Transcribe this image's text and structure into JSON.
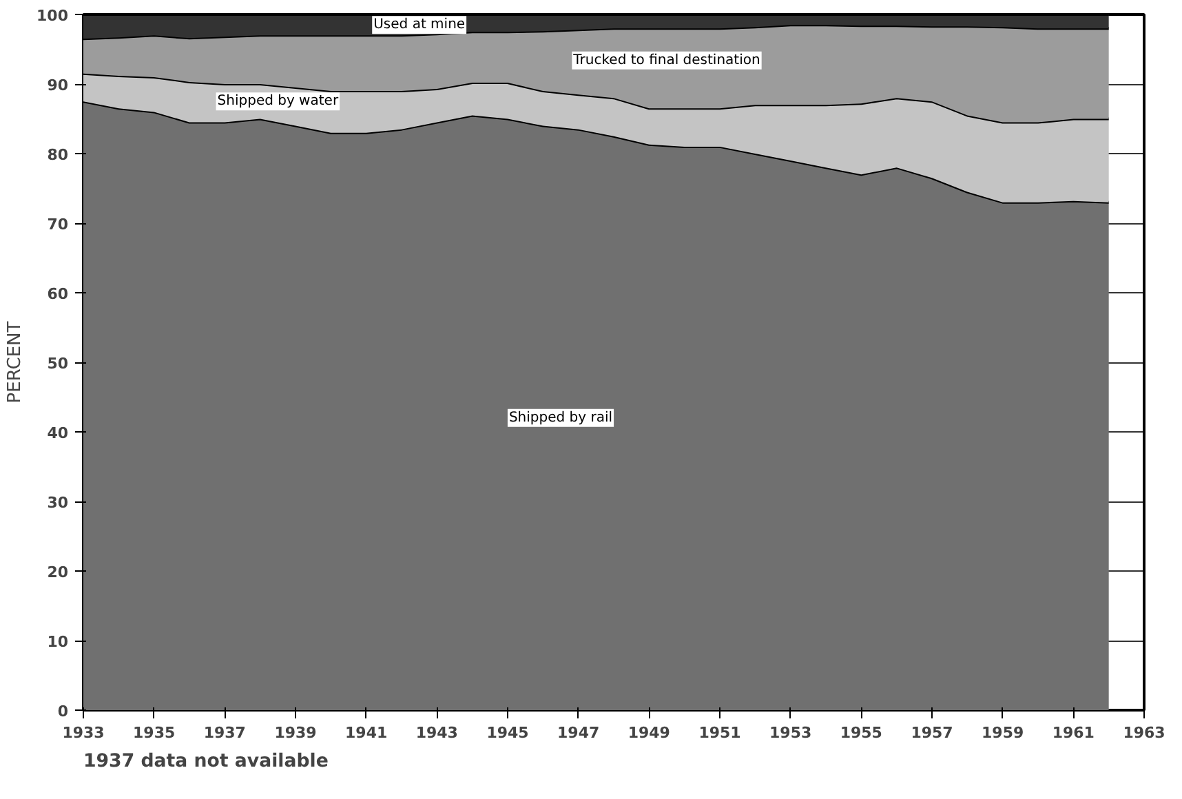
{
  "chart_data": {
    "type": "area",
    "stacked": true,
    "ylabel": "PERCENT",
    "x": [
      1933,
      1934,
      1935,
      1936,
      1937,
      1938,
      1939,
      1940,
      1941,
      1942,
      1943,
      1944,
      1945,
      1946,
      1947,
      1948,
      1949,
      1950,
      1951,
      1952,
      1953,
      1954,
      1955,
      1956,
      1957,
      1958,
      1959,
      1960,
      1961,
      1962
    ],
    "series": [
      {
        "name": "Shipped by rail",
        "color": "#707070",
        "values": [
          87.5,
          86.5,
          86,
          84.5,
          84.5,
          85,
          84,
          83,
          83,
          83.5,
          84.5,
          85.5,
          85,
          84,
          83.5,
          82.5,
          81.3,
          81,
          81,
          80,
          79,
          78,
          77,
          78,
          76.5,
          74.5,
          73,
          73,
          73.2,
          73
        ]
      },
      {
        "name": "Shipped by water",
        "color": "#c4c4c4",
        "values": [
          4,
          4.7,
          5,
          5.8,
          5.5,
          5,
          5.5,
          6,
          6,
          5.5,
          4.8,
          4.7,
          5.2,
          5,
          5,
          5.5,
          5.2,
          5.5,
          5.5,
          7,
          8,
          9,
          10.2,
          10,
          11,
          11,
          11.5,
          11.5,
          11.8,
          12
        ]
      },
      {
        "name": "Trucked to final destination",
        "color": "#9c9c9c",
        "values": [
          5,
          5.5,
          6,
          6.3,
          6.8,
          7,
          7.5,
          8,
          8,
          8,
          7.9,
          7.3,
          7.3,
          8.6,
          9.3,
          10,
          11.5,
          11.5,
          11.5,
          11.2,
          11.5,
          11.5,
          11.2,
          10.4,
          10.8,
          12.8,
          13.7,
          13.5,
          13,
          13
        ]
      },
      {
        "name": "Used at mine",
        "color": "#333333",
        "values": [
          3.5,
          3.3,
          3,
          3.4,
          3.2,
          3,
          3,
          3,
          3,
          3,
          2.8,
          2.5,
          2.5,
          2.4,
          2.2,
          2,
          2,
          2,
          2,
          1.8,
          1.5,
          1.5,
          1.6,
          1.6,
          1.7,
          1.7,
          1.8,
          2,
          2,
          2
        ]
      }
    ],
    "xlim": [
      1933,
      1963
    ],
    "xticks": [
      1933,
      1935,
      1937,
      1939,
      1941,
      1943,
      1945,
      1947,
      1949,
      1951,
      1953,
      1955,
      1957,
      1959,
      1961,
      1963
    ],
    "ylim": [
      0,
      100
    ],
    "yticks": [
      0,
      10,
      20,
      30,
      40,
      50,
      60,
      70,
      80,
      90,
      100
    ],
    "grid": true,
    "annotations": [
      "1937 data not available"
    ]
  }
}
